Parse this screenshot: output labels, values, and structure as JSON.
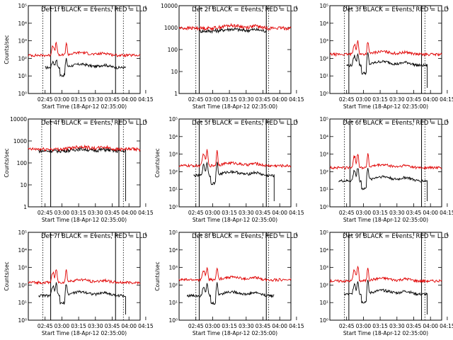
{
  "colors": {
    "events": "#000000",
    "lld": "#e00000",
    "markers": "#000000"
  },
  "chart_data": [
    {
      "type": "line",
      "title": "Det 1f BLACK = Events, RED = LLD",
      "ylabel": "Counts/sec",
      "xlabel": "Start Time (18-Apr-12 02:35:00)",
      "yscale": "log",
      "ylim": [
        1,
        100000
      ],
      "ytick_labels": [
        "10⁰",
        "10¹",
        "10²",
        "10³",
        "10⁴",
        "10⁵"
      ],
      "xtick_labels": [
        "02:45",
        "03:00",
        "03:15",
        "03:30",
        "03:45",
        "04:00",
        "04:15"
      ],
      "xlim_minutes": [
        -5,
        95
      ],
      "dotted_markers": [
        8,
        80
      ],
      "solid_markers": [
        15,
        73
      ],
      "series": [
        {
          "name": "BLACK = Events",
          "start": 10,
          "end": 82,
          "base": 30,
          "flare": 0.25,
          "hump": 0.25,
          "dropout": true,
          "cutoff": false
        },
        {
          "name": "RED = LLD",
          "start": -5,
          "end": 95,
          "base": 150,
          "flare": 0.55,
          "hump": 0.2,
          "dropout": false,
          "cutoff": false
        }
      ]
    },
    {
      "type": "line",
      "title": "Det 2f BLACK = Events, RED = LLD",
      "ylabel": "",
      "xlabel": "Start Time (18-Apr-12 02:35:00)",
      "yscale": "log",
      "ylim": [
        1,
        10000
      ],
      "ytick_labels": [
        "1",
        "10",
        "100",
        "1000",
        "10000"
      ],
      "xtick_labels": [
        "02:45",
        "03:00",
        "03:15",
        "03:30",
        "03:45",
        "04:00",
        "04:15"
      ],
      "xlim_minutes": [
        -5,
        95
      ],
      "dotted_markers": [
        10,
        75
      ],
      "solid_markers": [
        13,
        73
      ],
      "series": [
        {
          "name": "BLACK = Events",
          "start": 13,
          "end": 73,
          "base": 700,
          "flare": 0,
          "hump": 0.1,
          "dropout": false,
          "cutoff": false
        },
        {
          "name": "RED = LLD",
          "start": -5,
          "end": 95,
          "base": 950,
          "flare": 0,
          "hump": 0.15,
          "dropout": false,
          "cutoff": false
        }
      ]
    },
    {
      "type": "line",
      "title": "Det 3f BLACK = Events, RED = LLD",
      "ylabel": "",
      "xlabel": "Start Time (18-Apr-12 02:35:00)",
      "yscale": "log",
      "ylim": [
        1,
        100000
      ],
      "ytick_labels": [
        "10⁰",
        "10¹",
        "10²",
        "10³",
        "10⁴",
        "10⁵"
      ],
      "xtick_labels": [
        "02:45",
        "03:00",
        "03:15",
        "03:30",
        "03:45",
        "04:00",
        "04:15"
      ],
      "xlim_minutes": [
        -5,
        95
      ],
      "dotted_markers": [
        8,
        80
      ],
      "solid_markers": [
        12,
        77
      ],
      "series": [
        {
          "name": "BLACK = Events",
          "start": 10,
          "end": 82,
          "base": 40,
          "flare": 0.5,
          "hump": 0.3,
          "dropout": true,
          "cutoff": true
        },
        {
          "name": "RED = LLD",
          "start": -5,
          "end": 95,
          "base": 170,
          "flare": 0.6,
          "hump": 0.2,
          "dropout": false,
          "cutoff": false
        }
      ]
    },
    {
      "type": "line",
      "title": "Det 4f BLACK = Events, RED = LLD",
      "ylabel": "Counts/sec",
      "xlabel": "Start Time (18-Apr-12 02:35:00)",
      "yscale": "log",
      "ylim": [
        1,
        10000
      ],
      "ytick_labels": [
        "1",
        "10",
        "100",
        "1000",
        "10000"
      ],
      "xtick_labels": [
        "02:45",
        "03:00",
        "03:15",
        "03:30",
        "03:45",
        "04:00",
        "04:15"
      ],
      "xlim_minutes": [
        -5,
        95
      ],
      "dotted_markers": [
        7,
        80
      ],
      "solid_markers": [
        15,
        76
      ],
      "series": [
        {
          "name": "BLACK = Events",
          "start": 4,
          "end": 82,
          "base": 350,
          "flare": 0,
          "hump": 0.1,
          "dropout": false,
          "cutoff": true
        },
        {
          "name": "RED = LLD",
          "start": -5,
          "end": 95,
          "base": 420,
          "flare": 0,
          "hump": 0.15,
          "dropout": false,
          "cutoff": false
        }
      ]
    },
    {
      "type": "line",
      "title": "Det 5f BLACK = Events, RED = LLD",
      "ylabel": "Counts/sec",
      "xlabel": "Start Time (18-Apr-12 02:35:00)",
      "yscale": "log",
      "ylim": [
        1,
        100000
      ],
      "ytick_labels": [
        "10⁰",
        "10¹",
        "10²",
        "10³",
        "10⁴",
        "10⁵"
      ],
      "xtick_labels": [
        "02:45",
        "03:00",
        "03:15",
        "03:30",
        "03:45",
        "04:00",
        "04:15"
      ],
      "xlim_minutes": [
        -5,
        95
      ],
      "dotted_markers": [
        10,
        75
      ],
      "solid_markers": [
        13,
        73
      ],
      "series": [
        {
          "name": "BLACK = Events",
          "start": 8,
          "end": 80,
          "base": 60,
          "flare": 0.6,
          "hump": 0.3,
          "dropout": true,
          "cutoff": true
        },
        {
          "name": "RED = LLD",
          "start": -5,
          "end": 95,
          "base": 220,
          "flare": 0.8,
          "hump": 0.2,
          "dropout": false,
          "cutoff": false
        }
      ]
    },
    {
      "type": "line",
      "title": "Det 6f BLACK = Events, RED = LLD",
      "ylabel": "",
      "xlabel": "Start Time (18-Apr-12 02:35:00)",
      "yscale": "log",
      "ylim": [
        1,
        100000
      ],
      "ytick_labels": [
        "10⁰",
        "10¹",
        "10²",
        "10³",
        "10⁴",
        "10⁵"
      ],
      "xtick_labels": [
        "02:45",
        "03:00",
        "03:15",
        "03:30",
        "03:45",
        "04:00",
        "04:15"
      ],
      "xlim_minutes": [
        -5,
        95
      ],
      "dotted_markers": [
        8,
        80
      ],
      "solid_markers": [
        13,
        77
      ],
      "series": [
        {
          "name": "BLACK = Events",
          "start": 3,
          "end": 82,
          "base": 30,
          "flare": 0.6,
          "hump": 0.35,
          "dropout": true,
          "cutoff": true
        },
        {
          "name": "RED = LLD",
          "start": -5,
          "end": 95,
          "base": 170,
          "flare": 0.7,
          "hump": 0.2,
          "dropout": false,
          "cutoff": false
        }
      ]
    },
    {
      "type": "line",
      "title": "Det 7f BLACK = Events, RED = LLD",
      "ylabel": "Counts/sec",
      "xlabel": "Start Time (18-Apr-12 02:35:00)",
      "yscale": "log",
      "ylim": [
        1,
        100000
      ],
      "ytick_labels": [
        "10⁰",
        "10¹",
        "10²",
        "10³",
        "10⁴",
        "10⁵"
      ],
      "xtick_labels": [
        "02:45",
        "03:00",
        "03:15",
        "03:30",
        "03:45",
        "04:00",
        "04:15"
      ],
      "xlim_minutes": [
        -5,
        95
      ],
      "dotted_markers": [
        8,
        80
      ],
      "solid_markers": [
        15,
        73
      ],
      "series": [
        {
          "name": "BLACK = Events",
          "start": 4,
          "end": 82,
          "base": 25,
          "flare": 0.5,
          "hump": 0.3,
          "dropout": true,
          "cutoff": true
        },
        {
          "name": "RED = LLD",
          "start": -5,
          "end": 95,
          "base": 140,
          "flare": 0.6,
          "hump": 0.2,
          "dropout": false,
          "cutoff": false
        }
      ]
    },
    {
      "type": "line",
      "title": "Det 8f BLACK = Events, RED = LLD",
      "ylabel": "Counts/sec",
      "xlabel": "Start Time (18-Apr-12 02:35:00)",
      "yscale": "log",
      "ylim": [
        1,
        100000
      ],
      "ytick_labels": [
        "10⁰",
        "10¹",
        "10²",
        "10³",
        "10⁴",
        "10⁵"
      ],
      "xtick_labels": [
        "02:45",
        "03:00",
        "03:15",
        "03:30",
        "03:45",
        "04:00",
        "04:15"
      ],
      "xlim_minutes": [
        -5,
        95
      ],
      "dotted_markers": [
        10,
        75
      ],
      "solid_markers": [
        13,
        73
      ],
      "series": [
        {
          "name": "BLACK = Events",
          "start": 2,
          "end": 80,
          "base": 25,
          "flare": 0.5,
          "hump": 0.3,
          "dropout": true,
          "cutoff": false
        },
        {
          "name": "RED = LLD",
          "start": -5,
          "end": 95,
          "base": 200,
          "flare": 0.5,
          "hump": 0.2,
          "dropout": false,
          "cutoff": false
        }
      ]
    },
    {
      "type": "line",
      "title": "Det 9f BLACK = Events, RED = LLD",
      "ylabel": "",
      "xlabel": "Start Time (18-Apr-12 02:35:00)",
      "yscale": "log",
      "ylim": [
        1,
        100000
      ],
      "ytick_labels": [
        "10⁰",
        "10¹",
        "10²",
        "10³",
        "10⁴",
        "10⁵"
      ],
      "xtick_labels": [
        "02:45",
        "03:00",
        "03:15",
        "03:30",
        "03:45",
        "04:00",
        "04:15"
      ],
      "xlim_minutes": [
        -5,
        95
      ],
      "dotted_markers": [
        8,
        80
      ],
      "solid_markers": [
        12,
        77
      ],
      "series": [
        {
          "name": "BLACK = Events",
          "start": 8,
          "end": 82,
          "base": 30,
          "flare": 0.6,
          "hump": 0.3,
          "dropout": true,
          "cutoff": true
        },
        {
          "name": "RED = LLD",
          "start": -5,
          "end": 95,
          "base": 170,
          "flare": 0.7,
          "hump": 0.2,
          "dropout": false,
          "cutoff": false
        }
      ]
    }
  ]
}
